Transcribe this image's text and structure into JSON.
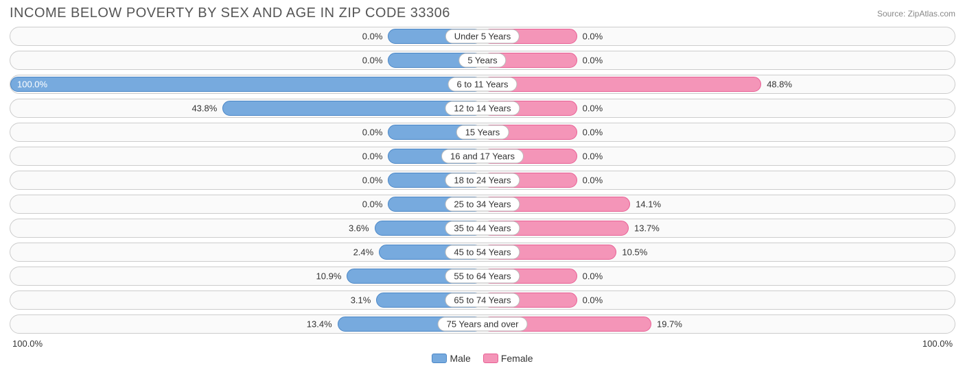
{
  "header": {
    "title": "INCOME BELOW POVERTY BY SEX AND AGE IN ZIP CODE 33306",
    "source": "Source: ZipAtlas.com"
  },
  "chart": {
    "type": "diverging-bar",
    "male_color": "#77aade",
    "male_border": "#4a86c6",
    "female_color": "#f495b8",
    "female_border": "#e85f94",
    "track_bg": "#fafafa",
    "track_border": "#cccccc",
    "label_fontsize": 13,
    "min_bar_pct": 20,
    "axis_left": "100.0%",
    "axis_right": "100.0%",
    "rows": [
      {
        "category": "Under 5 Years",
        "male": 0.0,
        "female": 0.0
      },
      {
        "category": "5 Years",
        "male": 0.0,
        "female": 0.0
      },
      {
        "category": "6 to 11 Years",
        "male": 100.0,
        "female": 48.8
      },
      {
        "category": "12 to 14 Years",
        "male": 43.8,
        "female": 0.0
      },
      {
        "category": "15 Years",
        "male": 0.0,
        "female": 0.0
      },
      {
        "category": "16 and 17 Years",
        "male": 0.0,
        "female": 0.0
      },
      {
        "category": "18 to 24 Years",
        "male": 0.0,
        "female": 0.0
      },
      {
        "category": "25 to 34 Years",
        "male": 0.0,
        "female": 14.1
      },
      {
        "category": "35 to 44 Years",
        "male": 3.6,
        "female": 13.7
      },
      {
        "category": "45 to 54 Years",
        "male": 2.4,
        "female": 10.5
      },
      {
        "category": "55 to 64 Years",
        "male": 10.9,
        "female": 0.0
      },
      {
        "category": "65 to 74 Years",
        "male": 3.1,
        "female": 0.0
      },
      {
        "category": "75 Years and over",
        "male": 13.4,
        "female": 19.7
      }
    ]
  },
  "legend": {
    "male": "Male",
    "female": "Female"
  }
}
